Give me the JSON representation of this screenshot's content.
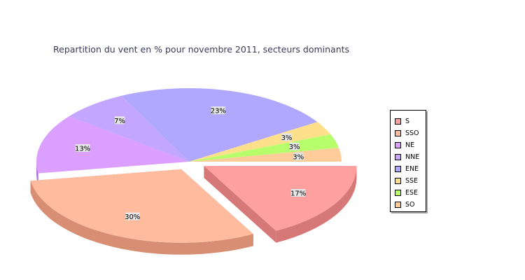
{
  "chart_data": {
    "type": "pie",
    "title": "Repartition du vent en % pour novembre 2011, secteurs dominants",
    "slices": [
      {
        "name": "S",
        "value": 17,
        "label": "17%",
        "color": "#ffa0a0",
        "side": "#d77878"
      },
      {
        "name": "SSO",
        "value": 30,
        "label": "30%",
        "color": "#ffbb9e",
        "side": "#d78e72"
      },
      {
        "name": "NE",
        "value": 13,
        "label": "13%",
        "color": "#dba0ff",
        "side": "#b078d7"
      },
      {
        "name": "NNE",
        "value": 7,
        "label": "7%",
        "color": "#c3a6ff",
        "side": "#977ed7"
      },
      {
        "name": "ENE",
        "value": 23,
        "label": "23%",
        "color": "#b0a8ff",
        "side": "#8880d7"
      },
      {
        "name": "SSE",
        "value": 3,
        "label": "3%",
        "color": "#ffe08a",
        "side": "#d7b764"
      },
      {
        "name": "ESE",
        "value": 3,
        "label": "3%",
        "color": "#b6ff6b",
        "side": "#8cd748"
      },
      {
        "name": "SO",
        "value": 3,
        "label": "3%",
        "color": "#ffcc9a",
        "side": "#d7a474"
      }
    ],
    "exploded": [
      "S",
      "SSO"
    ],
    "legend_placement": "right"
  }
}
